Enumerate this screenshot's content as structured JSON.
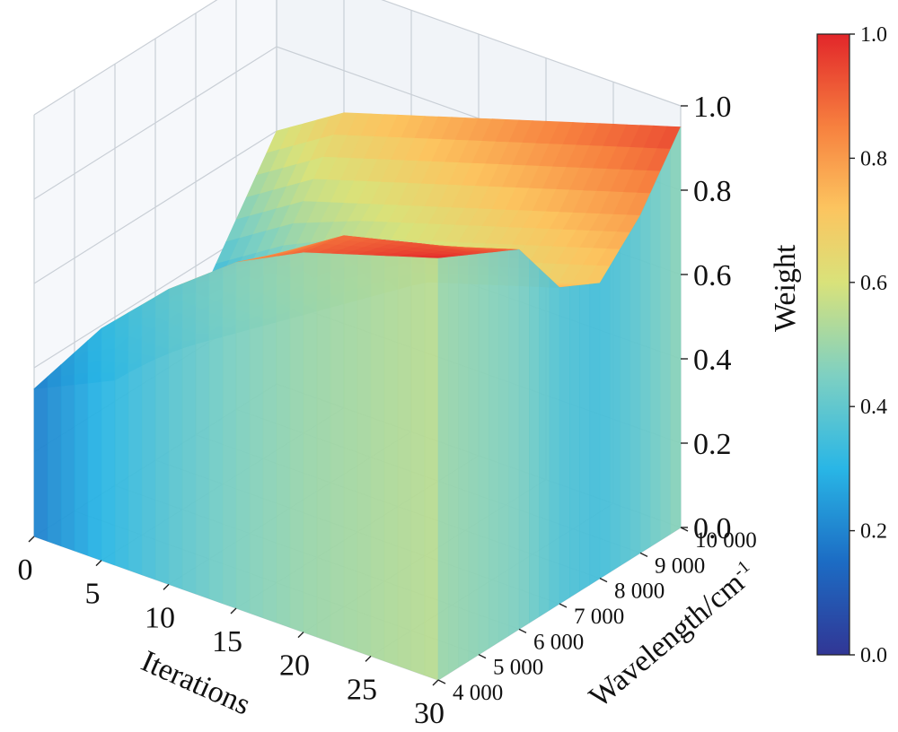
{
  "chart_data": {
    "type": "surface3d",
    "title": "",
    "xlabel": "Iterations",
    "ylabel": "Wavelength/cm",
    "ylabel_superscript": "-1",
    "zlabel": "Weight",
    "x_ticks": [
      "0",
      "5",
      "10",
      "15",
      "20",
      "25",
      "30"
    ],
    "y_ticks": [
      "4 000",
      "5 000",
      "6 000",
      "7 000",
      "8 000",
      "9 000",
      "10 000"
    ],
    "z_ticks": [
      "0.0",
      "0.2",
      "0.4",
      "0.6",
      "0.8",
      "1.0"
    ],
    "xlim": [
      0,
      30
    ],
    "ylim": [
      4000,
      10000
    ],
    "zlim": [
      0,
      1.0
    ],
    "colormap": "jet-like (blue → cyan → yellow → orange → red)",
    "colorbar": {
      "range": [
        0.0,
        1.0
      ],
      "ticks": [
        "0.0",
        "0.2",
        "0.4",
        "0.6",
        "0.8",
        "1.0"
      ]
    },
    "grid": true,
    "surface": {
      "x_iterations": [
        0,
        5,
        10,
        15,
        20,
        25,
        30
      ],
      "y_wavenumbers": [
        4000,
        5000,
        6000,
        7000,
        8000,
        9000,
        10000
      ],
      "weight": [
        [
          0.35,
          0.3,
          0.25,
          0.25,
          0.3,
          0.45,
          0.6
        ],
        [
          0.55,
          0.5,
          0.4,
          0.35,
          0.4,
          0.55,
          0.7
        ],
        [
          0.7,
          0.65,
          0.55,
          0.45,
          0.5,
          0.6,
          0.75
        ],
        [
          0.82,
          0.78,
          0.7,
          0.55,
          0.55,
          0.65,
          0.8
        ],
        [
          0.9,
          0.88,
          0.8,
          0.65,
          0.6,
          0.7,
          0.85
        ],
        [
          0.95,
          0.92,
          0.85,
          0.7,
          0.65,
          0.75,
          0.9
        ],
        [
          1.0,
          0.95,
          0.9,
          0.75,
          0.7,
          0.8,
          0.95
        ]
      ]
    }
  }
}
